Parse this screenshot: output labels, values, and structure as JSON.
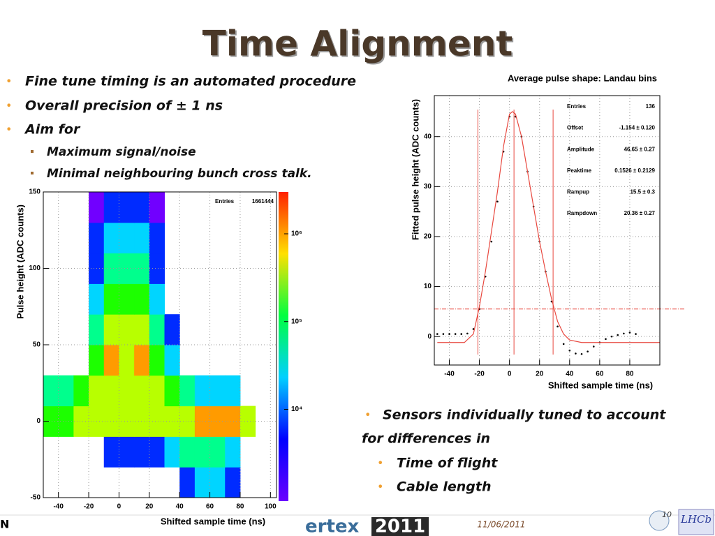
{
  "title": "Time Alignment",
  "bullets": [
    "Fine tune timing is an automated procedure",
    "Overall precision of ± 1 ns",
    "Aim for"
  ],
  "sub_bullets": [
    "Maximum signal/noise",
    "Minimal neighbouring bunch cross talk."
  ],
  "note": {
    "lines": [
      "Sensors individually tuned to account",
      "for differences in"
    ],
    "items": [
      "Time of flight",
      "Cable length"
    ]
  },
  "footer": {
    "left": "N",
    "logo": [
      "ertex",
      "2011"
    ],
    "date": "11/06/2011",
    "page": "10",
    "badge": "LHCb"
  },
  "chart_data": [
    {
      "type": "heatmap",
      "x_label": "Shifted sample time (ns)",
      "y_label": "Pulse height (ADC counts)",
      "stats": [
        {
          "label": "Entries",
          "value": "1661444"
        }
      ],
      "xbins": [
        -50,
        -40,
        -30,
        -20,
        -10,
        0,
        10,
        20,
        30,
        40,
        50,
        60,
        70,
        80,
        90,
        100
      ],
      "ybins": [
        -50,
        -30,
        -10,
        10,
        30,
        50,
        70,
        90,
        110,
        130,
        150
      ],
      "values": [
        [
          null,
          null,
          null,
          null,
          null,
          null,
          null,
          null,
          null,
          3000,
          10000,
          10000,
          3000,
          null,
          null
        ],
        [
          null,
          null,
          null,
          null,
          3000,
          3000,
          3000,
          3000,
          10000,
          30000,
          30000,
          30000,
          10000,
          null,
          null
        ],
        [
          100000,
          100000,
          300000,
          300000,
          300000,
          300000,
          300000,
          300000,
          300000,
          300000,
          1000000,
          1000000,
          1000000,
          300000,
          null
        ],
        [
          30000,
          30000,
          100000,
          300000,
          300000,
          300000,
          300000,
          300000,
          100000,
          30000,
          10000,
          10000,
          10000,
          null,
          null
        ],
        [
          null,
          null,
          null,
          100000,
          1000000,
          300000,
          1000000,
          100000,
          10000,
          null,
          null,
          null,
          null,
          null,
          null
        ],
        [
          null,
          null,
          null,
          30000,
          300000,
          300000,
          300000,
          30000,
          3000,
          null,
          null,
          null,
          null,
          null,
          null
        ],
        [
          null,
          null,
          null,
          10000,
          100000,
          100000,
          100000,
          10000,
          null,
          null,
          null,
          null,
          null,
          null,
          null
        ],
        [
          null,
          null,
          null,
          3000,
          30000,
          30000,
          30000,
          3000,
          null,
          null,
          null,
          null,
          null,
          null,
          null
        ],
        [
          null,
          null,
          null,
          3000,
          10000,
          10000,
          10000,
          3000,
          null,
          null,
          null,
          null,
          null,
          null,
          null
        ],
        [
          null,
          null,
          null,
          1000,
          3000,
          3000,
          3000,
          1000,
          null,
          null,
          null,
          null,
          null,
          null,
          null
        ]
      ],
      "xlim": [
        -50,
        104
      ],
      "ylim": [
        -50,
        150
      ],
      "xticks": [
        -40,
        -20,
        0,
        20,
        40,
        60,
        80,
        100
      ],
      "yticks": [
        -50,
        0,
        50,
        100,
        150
      ],
      "zlim": [
        900,
        3000000
      ],
      "zscale": "log",
      "zticks": [
        {
          "value": 10000,
          "label": "10⁴"
        },
        {
          "value": 100000,
          "label": "10⁵"
        },
        {
          "value": 1000000,
          "label": "10⁶"
        }
      ],
      "grid": true
    },
    {
      "type": "line",
      "title": "Average pulse shape: Landau bins",
      "x_label": "Shifted sample time (ns)",
      "y_label": "Fitted pulse height (ADC counts)",
      "stats": [
        {
          "label": "Entries",
          "value": "136"
        },
        {
          "label": "Offset",
          "value": "-1.154 ± 0.120"
        },
        {
          "label": "Amplitude",
          "value": "46.65 ± 0.27"
        },
        {
          "label": "Peaktime",
          "value": "0.1526 ± 0.2129"
        },
        {
          "label": "Rampup",
          "value": "15.5 ± 0.3"
        },
        {
          "label": "Rampdown",
          "value": "20.36 ± 0.27"
        }
      ],
      "series": [
        {
          "style": "points",
          "color": "#000000",
          "x": [
            -48,
            -44,
            -40,
            -36,
            -32,
            -28,
            -24,
            -20,
            -16,
            -12,
            -8,
            -4,
            0,
            4,
            8,
            12,
            16,
            20,
            24,
            28,
            32,
            36,
            40,
            44,
            48,
            52,
            56,
            60,
            64,
            68,
            72,
            76,
            80,
            84
          ],
          "values": [
            0.5,
            0.5,
            0.5,
            0.5,
            0.5,
            0.6,
            1.5,
            5.5,
            12,
            19,
            27,
            37,
            44,
            44,
            40,
            33,
            26,
            19,
            13,
            7,
            2,
            -1.5,
            -2.8,
            -3.4,
            -3.5,
            -3,
            -2,
            -1.2,
            -0.5,
            0,
            0.3,
            0.6,
            0.8,
            0.5
          ]
        },
        {
          "style": "line",
          "color": "#e8483f",
          "x": [
            -48,
            -30,
            -24,
            -20,
            -16,
            -12,
            -8,
            -4,
            0,
            2,
            4,
            8,
            12,
            16,
            20,
            24,
            28,
            32,
            36,
            40,
            48,
            100
          ],
          "values": [
            -1.2,
            -1.2,
            0.5,
            6,
            13,
            21,
            29,
            38,
            44.5,
            45,
            44.5,
            40,
            33,
            26,
            19,
            13,
            7.5,
            3,
            0.5,
            -0.7,
            -1.2,
            -1.2
          ]
        }
      ],
      "vlines": [
        -21,
        3,
        29
      ],
      "hline": 5.5,
      "xlim": [
        -50,
        100
      ],
      "ylim": [
        -5.7,
        48.2
      ],
      "xticks": [
        -40,
        -20,
        0,
        20,
        40,
        60,
        80
      ],
      "yticks": [
        0,
        10,
        20,
        30,
        40
      ],
      "grid": true
    }
  ]
}
